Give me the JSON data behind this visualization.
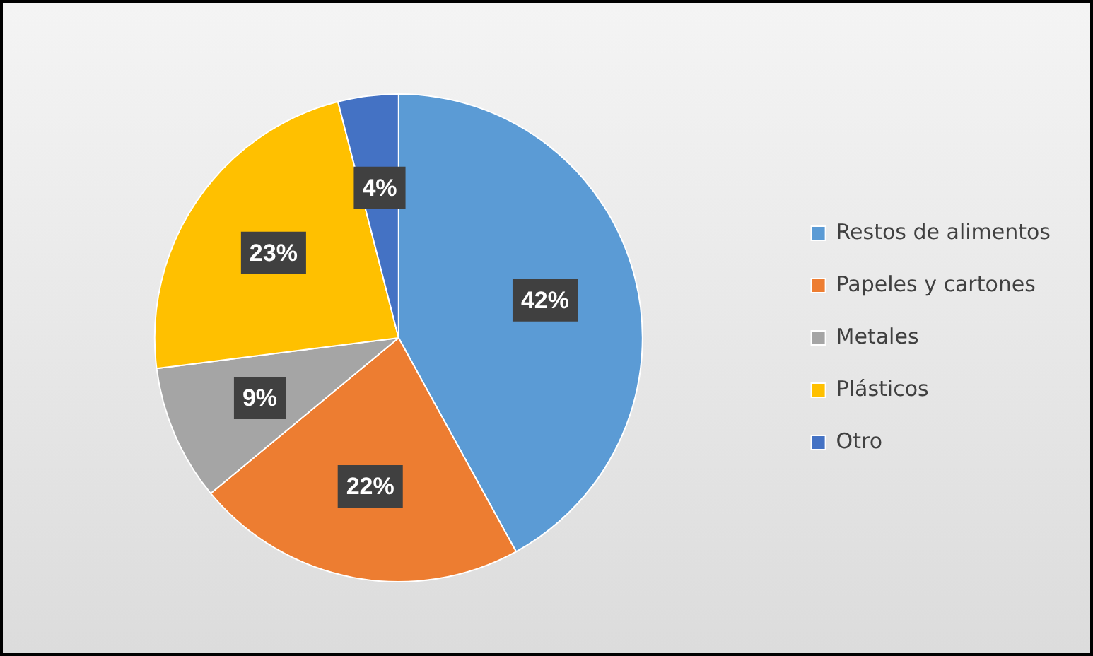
{
  "chart_data": {
    "type": "pie",
    "categories": [
      "Restos de alimentos",
      "Papeles y cartones",
      "Metales",
      "Plásticos",
      "Otro"
    ],
    "values": [
      42,
      22,
      9,
      23,
      4
    ],
    "colors": [
      "#5b9bd5",
      "#ed7d31",
      "#a5a5a5",
      "#ffc000",
      "#4472c4"
    ],
    "value_labels": [
      "42%",
      "22%",
      "9%",
      "23%",
      "4%"
    ],
    "legend": "right"
  }
}
